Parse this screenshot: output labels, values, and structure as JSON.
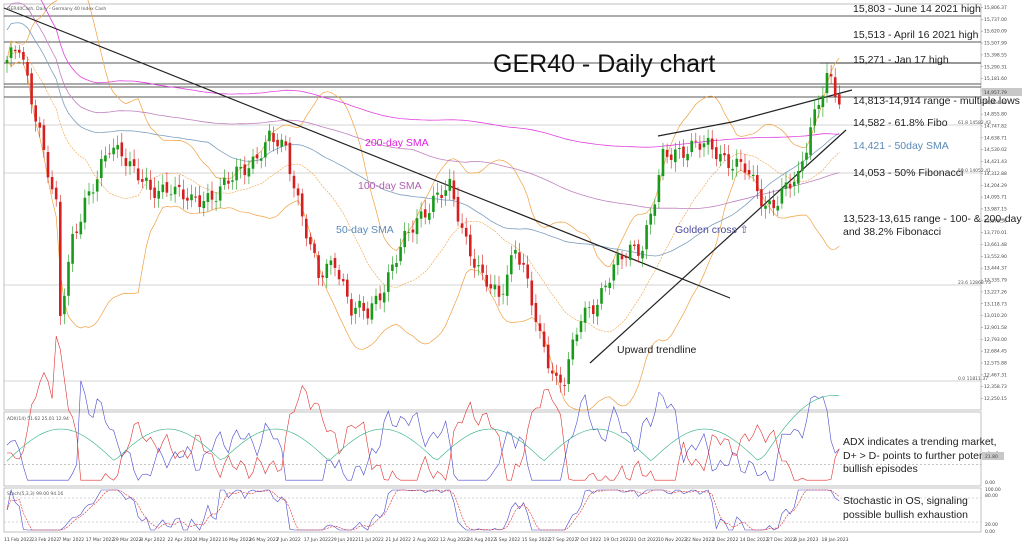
{
  "chart_data": {
    "type": "candlestick",
    "instrument_header": "GER40Cash, Daily - Germany 40 Index Cash",
    "title": "GER40 - Daily chart",
    "colors": {
      "up": "#1a9a1a",
      "down": "#d62020",
      "sma50": "#7f9fc0",
      "sma100": "#c080c0",
      "sma200": "#e040e0",
      "bollinger": "#f0a040",
      "trendline": "#222222",
      "plus_di": "#4a4ad0",
      "minus_di": "#e03030",
      "adx": "#30b080",
      "stoch_k": "#4a4ad0",
      "stoch_d": "#e03030"
    },
    "y_axis_ticks": [
      "15,806.37",
      "15,737.00",
      "15,620.09",
      "15,507.99",
      "15,398.55",
      "15,290.31",
      "15,181.60",
      "15,073.06",
      "14,964.49",
      "14,855.80",
      "14,747.82",
      "14,638.71",
      "14,530.02",
      "14,421.43",
      "14,312.88",
      "14,204.29",
      "14,095.71",
      "13,987.15",
      "13,878.56",
      "13,770.01",
      "13,661.48",
      "13,552.90",
      "13,444.37",
      "13,335.79",
      "13,227.26",
      "13,118.73",
      "13,010.20",
      "12,901.58",
      "12,793.00",
      "12,684.45",
      "12,575.88",
      "12,467.31",
      "12,358.73",
      "12,250.15"
    ],
    "x_axis_ticks": [
      "11 Feb 2022",
      "23 Feb 2022",
      "7 Mar 2022",
      "17 Mar 2022",
      "29 Mar 2022",
      "8 Apr 2022",
      "22 Apr 2022",
      "4 May 2022",
      "16 May 2022",
      "26 May 2022",
      "7 Jun 2022",
      "17 Jun 2022",
      "29 Jun 2022",
      "11 Jul 2022",
      "21 Jul 2022",
      "2 Aug 2022",
      "12 Aug 2022",
      "24 Aug 2022",
      "5 Sep 2022",
      "15 Sep 2022",
      "27 Sep 2022",
      "7 Oct 2022",
      "19 Oct 2022",
      "31 Oct 2022",
      "10 Nov 2022",
      "22 Nov 2022",
      "2 Dec 2022",
      "14 Dec 2022",
      "27 Dec 2022",
      "6 Jan 2023",
      "18 Jan 2023"
    ],
    "price_tag": "14,957.79",
    "fibo_labels": [
      "61.8 14582.43",
      "50.0 14052.41",
      "23.6 12868.73",
      "0.0 11811.37"
    ],
    "levels": [
      {
        "label": "15,803 - June 14 2021 high",
        "value": 15803
      },
      {
        "label": "15,513 - April 16 2021 high",
        "value": 15513
      },
      {
        "label": "15,271 - Jan 17 high",
        "value": 15271
      },
      {
        "label": "14,813-14,914 range - multiple lows",
        "value": 14860
      },
      {
        "label": "14,582 - 61.8% Fibo",
        "value": 14582
      },
      {
        "label": "14,421 - 50day SMA",
        "value": 14421
      },
      {
        "label": "14,053 - 50% Fibonacci",
        "value": 14053
      },
      {
        "label": "13,523-13,615 range - 100- & 200-day",
        "value": 13570
      }
    ],
    "annotations": {
      "sma200": "200-day SMA",
      "sma100": "100-day SMA",
      "sma50": "50-day SMA",
      "golden_cross": "Golden cross ⇧",
      "upward_trendline": "Upward trendline",
      "range_line2": "and 38.2% Fibonacci"
    },
    "adx_panel": {
      "header": "ADX(14) 51.62 25.01 12.94",
      "tick_labels": [
        "21.80",
        "0.00"
      ],
      "note_lines": [
        "ADX indicates a trending market,",
        "D+ > D- points to further potential",
        "bullish episodes"
      ]
    },
    "stoch_panel": {
      "header": "Stoch(5,3,3) 99.00 94.16",
      "tick_labels": [
        "100.00",
        "80.00",
        "20.00",
        "0.00"
      ],
      "note_lines": [
        "Stochastic in OS, signaling",
        "possible bullish exhaustion"
      ]
    }
  }
}
